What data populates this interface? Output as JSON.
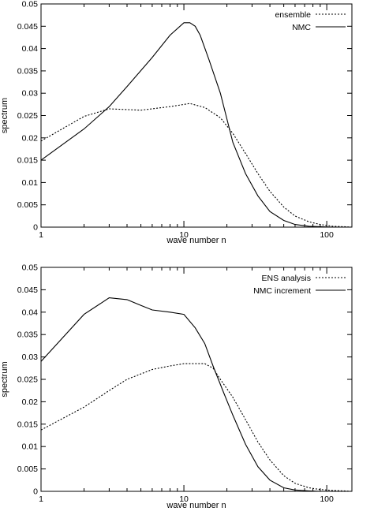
{
  "chart_data": [
    {
      "type": "line",
      "xscale": "log",
      "xlim": [
        1,
        150
      ],
      "ylim": [
        0,
        0.05
      ],
      "xlabel": "wave number n",
      "ylabel": "spectrum",
      "xticks": [
        1,
        10,
        100
      ],
      "xtick_labels": [
        "1",
        "10",
        "100"
      ],
      "yticks": [
        0,
        0.005,
        0.01,
        0.015,
        0.02,
        0.025,
        0.03,
        0.035,
        0.04,
        0.045,
        0.05
      ],
      "ytick_labels": [
        "0",
        "0.005",
        "0.01",
        "0.015",
        "0.02",
        "0.025",
        "0.03",
        "0.035",
        "0.04",
        "0.045",
        "0.05"
      ],
      "grid": false,
      "legend_position": "top-right",
      "series": [
        {
          "name": "ensemble",
          "style": "dotted",
          "color": "#000000",
          "x": [
            1,
            2,
            3,
            5,
            8,
            11,
            14,
            18,
            22,
            27,
            33,
            40,
            50,
            60,
            75,
            90,
            110,
            130,
            150
          ],
          "y": [
            0.0193,
            0.0248,
            0.0265,
            0.0262,
            0.027,
            0.0277,
            0.0268,
            0.0245,
            0.021,
            0.0165,
            0.012,
            0.008,
            0.0045,
            0.0025,
            0.0012,
            0.0006,
            0.0002,
            0.0001,
            0.0
          ]
        },
        {
          "name": "NMC",
          "style": "solid",
          "color": "#000000",
          "x": [
            1,
            2,
            3,
            4,
            6,
            8,
            10,
            11,
            12,
            13,
            15,
            18,
            22,
            27,
            33,
            40,
            50,
            60,
            75,
            90,
            110,
            130,
            150
          ],
          "y": [
            0.015,
            0.022,
            0.027,
            0.0315,
            0.038,
            0.043,
            0.0458,
            0.0458,
            0.045,
            0.043,
            0.0375,
            0.03,
            0.019,
            0.012,
            0.007,
            0.0035,
            0.0015,
            0.0006,
            0.0002,
            0.0001,
            0.0,
            0.0,
            0.0
          ]
        }
      ]
    },
    {
      "type": "line",
      "xscale": "log",
      "xlim": [
        1,
        150
      ],
      "ylim": [
        0,
        0.05
      ],
      "xlabel": "wave number n",
      "ylabel": "spectrum",
      "xticks": [
        1,
        10,
        100
      ],
      "xtick_labels": [
        "1",
        "10",
        "100"
      ],
      "yticks": [
        0,
        0.005,
        0.01,
        0.015,
        0.02,
        0.025,
        0.03,
        0.035,
        0.04,
        0.045,
        0.05
      ],
      "ytick_labels": [
        "0",
        "0.005",
        "0.01",
        "0.015",
        "0.02",
        "0.025",
        "0.03",
        "0.035",
        "0.04",
        "0.045",
        "0.05"
      ],
      "grid": false,
      "legend_position": "top-right",
      "series": [
        {
          "name": "ENS analysis",
          "style": "dotted",
          "color": "#000000",
          "x": [
            1,
            2,
            3,
            4,
            6,
            8,
            10,
            13,
            14,
            16,
            18,
            22,
            27,
            33,
            40,
            50,
            60,
            75,
            90,
            110,
            130,
            150
          ],
          "y": [
            0.0137,
            0.0188,
            0.0225,
            0.025,
            0.0272,
            0.028,
            0.0285,
            0.0285,
            0.0285,
            0.0275,
            0.025,
            0.021,
            0.016,
            0.011,
            0.007,
            0.0035,
            0.0018,
            0.0008,
            0.0004,
            0.0002,
            0.0001,
            0.0
          ]
        },
        {
          "name": "NMC increment",
          "style": "solid",
          "color": "#000000",
          "x": [
            1,
            2,
            3,
            4,
            5,
            6,
            8,
            10,
            12,
            14,
            16,
            19,
            22,
            27,
            33,
            40,
            50,
            60,
            75,
            90,
            110,
            150
          ],
          "y": [
            0.029,
            0.0395,
            0.0432,
            0.0428,
            0.0415,
            0.0405,
            0.04,
            0.0395,
            0.0365,
            0.033,
            0.028,
            0.022,
            0.017,
            0.0105,
            0.0055,
            0.0025,
            0.0008,
            0.0003,
            0.0001,
            0.0,
            0.0,
            0.0
          ]
        }
      ]
    }
  ]
}
